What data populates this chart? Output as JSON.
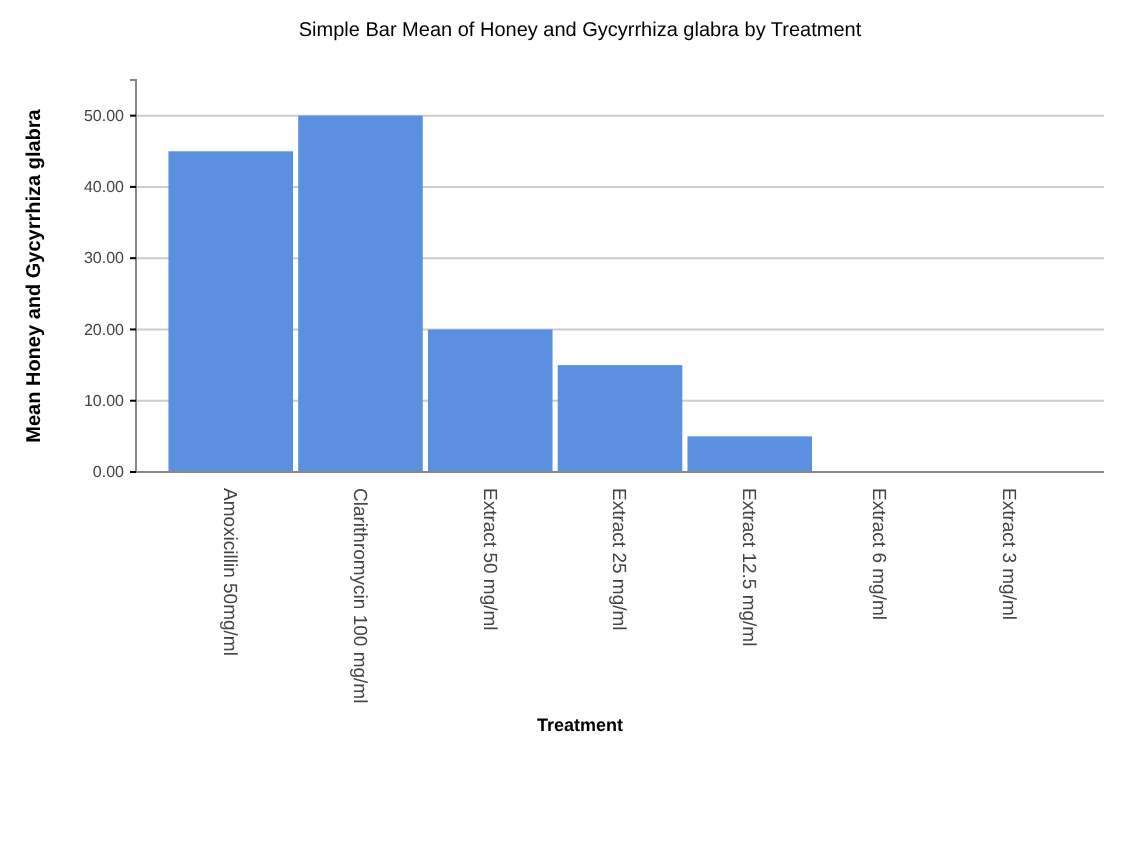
{
  "chart_data": {
    "type": "bar",
    "title": "Simple Bar Mean of Honey and Gycyrrhiza glabra  by Treatment",
    "xlabel": "Treatment",
    "ylabel": "Mean Honey and Gycyrrhiza glabra",
    "categories": [
      "Amoxicillin 50mg/ml",
      "Clarithromycin 100 mg/ml",
      "Extract 50 mg/ml",
      "Extract 25 mg/ml",
      "Extract 12.5 mg/ml",
      "Extract 6 mg/ml",
      "Extract 3 mg/ml"
    ],
    "values": [
      45,
      50,
      20,
      15,
      5,
      0,
      0
    ],
    "color": "#5b8fe0",
    "ylim": [
      0,
      55
    ],
    "yticks": [
      {
        "value": 0,
        "label": "0.00"
      },
      {
        "value": 10,
        "label": "10.00"
      },
      {
        "value": 20,
        "label": "20.00"
      },
      {
        "value": 30,
        "label": "30.00"
      },
      {
        "value": 40,
        "label": "40.00"
      },
      {
        "value": 50,
        "label": "50.00"
      }
    ],
    "grid": "y"
  }
}
